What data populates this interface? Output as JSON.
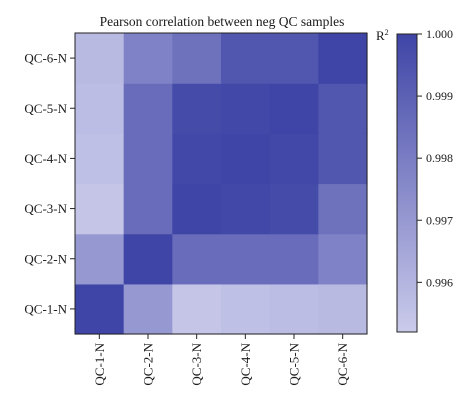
{
  "chart_data": {
    "type": "heatmap",
    "title": "Pearson correlation between neg QC samples",
    "x_labels": [
      "QC-1-N",
      "QC-2-N",
      "QC-3-N",
      "QC-4-N",
      "QC-5-N",
      "QC-6-N"
    ],
    "y_labels": [
      "QC-1-N",
      "QC-2-N",
      "QC-3-N",
      "QC-4-N",
      "QC-5-N",
      "QC-6-N"
    ],
    "colorbar": {
      "label": "R",
      "label_superscript": "2",
      "range": [
        0.9952,
        1.0
      ],
      "ticks": [
        0.996,
        0.997,
        0.998,
        0.999,
        1.0
      ],
      "tick_labels": [
        "0.996",
        "0.997",
        "0.998",
        "0.999",
        "1.000"
      ],
      "color_low": "#cbcbeb",
      "color_high": "#3f45a6"
    },
    "matrix": [
      [
        1.0,
        0.997,
        0.9954,
        0.9956,
        0.9957,
        0.9958
      ],
      [
        0.997,
        1.0,
        0.9986,
        0.9986,
        0.9986,
        0.9978
      ],
      [
        0.9954,
        0.9986,
        1.0,
        0.9999,
        0.9998,
        0.9984
      ],
      [
        0.9956,
        0.9986,
        0.9999,
        1.0,
        0.9999,
        0.9994
      ],
      [
        0.9957,
        0.9986,
        0.9998,
        0.9999,
        1.0,
        0.9994
      ],
      [
        0.9958,
        0.9978,
        0.9984,
        0.9994,
        0.9994,
        1.0
      ]
    ]
  }
}
